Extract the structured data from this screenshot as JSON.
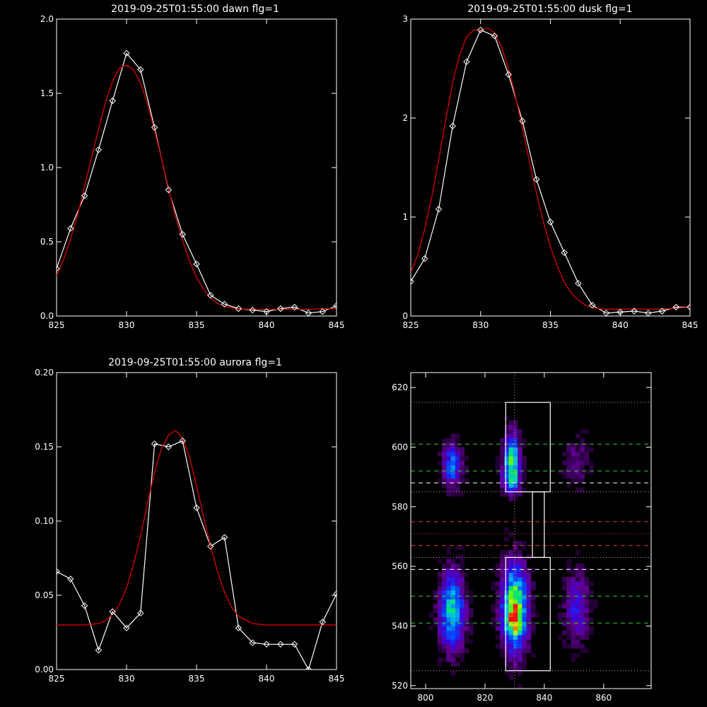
{
  "chart_data": [
    {
      "type": "line",
      "title": "2019-09-25T01:55:00 dawn flg=1",
      "xlim": [
        825,
        845
      ],
      "ylim": [
        0,
        2.0
      ],
      "xticks": [
        "825",
        "830",
        "835",
        "840",
        "845"
      ],
      "yticks": [
        "0.0",
        "0.5",
        "1.0",
        "1.5",
        "2.0"
      ],
      "colors": {
        "data": "#ffffff",
        "fit": "#cc0000"
      },
      "series": [
        {
          "x": [
            825,
            826,
            827,
            828,
            829,
            830,
            831,
            832,
            833,
            834,
            835,
            836,
            837,
            838,
            839,
            840,
            841,
            842,
            843,
            844,
            845
          ],
          "y": [
            0.32,
            0.59,
            0.81,
            1.12,
            1.45,
            1.77,
            1.66,
            1.27,
            0.85,
            0.55,
            0.35,
            0.14,
            0.08,
            0.05,
            0.04,
            0.03,
            0.05,
            0.06,
            0.02,
            0.03,
            0.07
          ]
        },
        {
          "x": [
            825,
            825.5,
            826,
            826.5,
            827,
            827.5,
            828,
            828.5,
            829,
            829.5,
            830,
            830.5,
            831,
            831.5,
            832,
            832.5,
            833,
            833.5,
            834,
            834.5,
            835,
            835.5,
            836,
            836.5,
            837,
            837.5,
            838,
            839,
            840,
            841,
            842,
            843,
            844,
            845
          ],
          "y": [
            0.27,
            0.38,
            0.52,
            0.68,
            0.87,
            1.07,
            1.26,
            1.44,
            1.58,
            1.67,
            1.69,
            1.66,
            1.57,
            1.43,
            1.25,
            1.06,
            0.86,
            0.67,
            0.51,
            0.37,
            0.26,
            0.18,
            0.12,
            0.085,
            0.065,
            0.055,
            0.048,
            0.045,
            0.045,
            0.045,
            0.045,
            0.045,
            0.05,
            0.05
          ]
        }
      ]
    },
    {
      "type": "line",
      "title": "2019-09-25T01:55:00 dusk flg=1",
      "xlim": [
        825,
        845
      ],
      "ylim": [
        0,
        3
      ],
      "xticks": [
        "825",
        "830",
        "835",
        "840",
        "845"
      ],
      "yticks": [
        "0",
        "1",
        "2",
        "3"
      ],
      "colors": {
        "data": "#ffffff",
        "fit": "#cc0000"
      },
      "series": [
        {
          "x": [
            825,
            826,
            827,
            828,
            829,
            830,
            831,
            832,
            833,
            834,
            835,
            836,
            837,
            838,
            839,
            840,
            841,
            842,
            843,
            844,
            845
          ],
          "y": [
            0.35,
            0.58,
            1.08,
            1.92,
            2.57,
            2.89,
            2.83,
            2.44,
            1.97,
            1.38,
            0.95,
            0.64,
            0.33,
            0.11,
            0.03,
            0.04,
            0.05,
            0.03,
            0.05,
            0.09,
            0.09
          ]
        },
        {
          "x": [
            825,
            825.5,
            826,
            826.5,
            827,
            827.5,
            828,
            828.5,
            829,
            829.5,
            830,
            830.5,
            831,
            831.5,
            832,
            832.5,
            833,
            833.5,
            834,
            834.5,
            835,
            835.5,
            836,
            836.5,
            837,
            837.5,
            838,
            838.5,
            839,
            840,
            841,
            842,
            843,
            844,
            845
          ],
          "y": [
            0.44,
            0.62,
            0.88,
            1.2,
            1.58,
            1.98,
            2.36,
            2.64,
            2.82,
            2.89,
            2.89,
            2.91,
            2.86,
            2.72,
            2.5,
            2.22,
            1.9,
            1.56,
            1.24,
            0.95,
            0.7,
            0.5,
            0.34,
            0.23,
            0.16,
            0.11,
            0.085,
            0.075,
            0.07,
            0.07,
            0.07,
            0.07,
            0.07,
            0.08,
            0.09
          ]
        }
      ]
    },
    {
      "type": "line",
      "title": "2019-09-25T01:55:00 aurora flg=1",
      "xlim": [
        825,
        845
      ],
      "ylim": [
        0,
        0.2
      ],
      "xticks": [
        "825",
        "830",
        "835",
        "840",
        "845"
      ],
      "yticks": [
        "0.00",
        "0.05",
        "0.10",
        "0.15",
        "0.20"
      ],
      "colors": {
        "data": "#ffffff",
        "fit": "#cc0000"
      },
      "series": [
        {
          "x": [
            825,
            826,
            827,
            828,
            829,
            830,
            831,
            832,
            833,
            834,
            835,
            836,
            837,
            838,
            839,
            840,
            841,
            842,
            843,
            844,
            845
          ],
          "y": [
            0.066,
            0.061,
            0.043,
            0.013,
            0.039,
            0.028,
            0.038,
            0.152,
            0.15,
            0.154,
            0.109,
            0.083,
            0.089,
            0.028,
            0.018,
            0.017,
            0.017,
            0.017,
            0.0,
            0.032,
            0.051
          ]
        },
        {
          "x": [
            825,
            826,
            827,
            828,
            828.5,
            829,
            829.5,
            830,
            830.5,
            831,
            831.5,
            832,
            832.5,
            833,
            833.5,
            834,
            834.5,
            835,
            835.5,
            836,
            836.5,
            837,
            837.5,
            838,
            839,
            840,
            841,
            842,
            843,
            844,
            845
          ],
          "y": [
            0.03,
            0.03,
            0.03,
            0.031,
            0.033,
            0.037,
            0.044,
            0.055,
            0.071,
            0.09,
            0.112,
            0.133,
            0.149,
            0.158,
            0.161,
            0.156,
            0.143,
            0.124,
            0.103,
            0.083,
            0.066,
            0.052,
            0.042,
            0.036,
            0.031,
            0.03,
            0.03,
            0.03,
            0.03,
            0.03,
            0.03
          ]
        }
      ]
    },
    {
      "type": "heatmap",
      "xlim": [
        795,
        876
      ],
      "ylim": [
        519,
        625
      ],
      "xticks": [
        "800",
        "820",
        "840",
        "860"
      ],
      "yticks": [
        "520",
        "540",
        "560",
        "580",
        "600",
        "620"
      ],
      "blobs": [
        {
          "x": 809,
          "y": 594,
          "sx": 2.2,
          "sy": 5,
          "amp": 0.45
        },
        {
          "x": 829,
          "y": 596,
          "sx": 2,
          "sy": 6,
          "amp": 0.62
        },
        {
          "x": 829,
          "y": 589,
          "sx": 2,
          "sy": 3,
          "amp": 0.35
        },
        {
          "x": 809,
          "y": 545,
          "sx": 3,
          "sy": 9,
          "amp": 0.6
        },
        {
          "x": 830,
          "y": 546,
          "sx": 3,
          "sy": 10,
          "amp": 0.82
        },
        {
          "x": 830,
          "y": 542,
          "sx": 1.5,
          "sy": 3,
          "amp": 0.3
        },
        {
          "x": 851,
          "y": 546,
          "sx": 3,
          "sy": 8,
          "amp": 0.3
        },
        {
          "x": 851,
          "y": 595,
          "sx": 3,
          "sy": 6,
          "amp": 0.16
        }
      ],
      "boxes": [
        {
          "x0": 827,
          "x1": 842,
          "y0": 585,
          "y1": 615
        },
        {
          "x0": 836,
          "x1": 840,
          "y0": 563,
          "y1": 585
        },
        {
          "x0": 827,
          "x1": 842,
          "y0": 525,
          "y1": 563
        }
      ],
      "vline": {
        "x": 830,
        "color": "#dd88dd"
      },
      "hlines": [
        {
          "y": 615,
          "color": "#dd88dd",
          "style": "dotted"
        },
        {
          "y": 601,
          "color": "#33cc33",
          "style": "dashed"
        },
        {
          "y": 592,
          "color": "#33cc33",
          "style": "dashed"
        },
        {
          "y": 588,
          "color": "#ffffff",
          "style": "dashed"
        },
        {
          "y": 585,
          "color": "#dd88dd",
          "style": "dotted"
        },
        {
          "y": 575,
          "color": "#dd3333",
          "style": "dashed"
        },
        {
          "y": 571,
          "color": "#dd3333",
          "style": "dotted"
        },
        {
          "y": 567,
          "color": "#dd3333",
          "style": "dashed"
        },
        {
          "y": 563,
          "color": "#dd88dd",
          "style": "dotted"
        },
        {
          "y": 559,
          "color": "#ffffff",
          "style": "dashed"
        },
        {
          "y": 550,
          "color": "#33cc33",
          "style": "dashed"
        },
        {
          "y": 541,
          "color": "#33cc33",
          "style": "dashed"
        },
        {
          "y": 525,
          "color": "#dd88dd",
          "style": "dotted"
        }
      ]
    }
  ]
}
